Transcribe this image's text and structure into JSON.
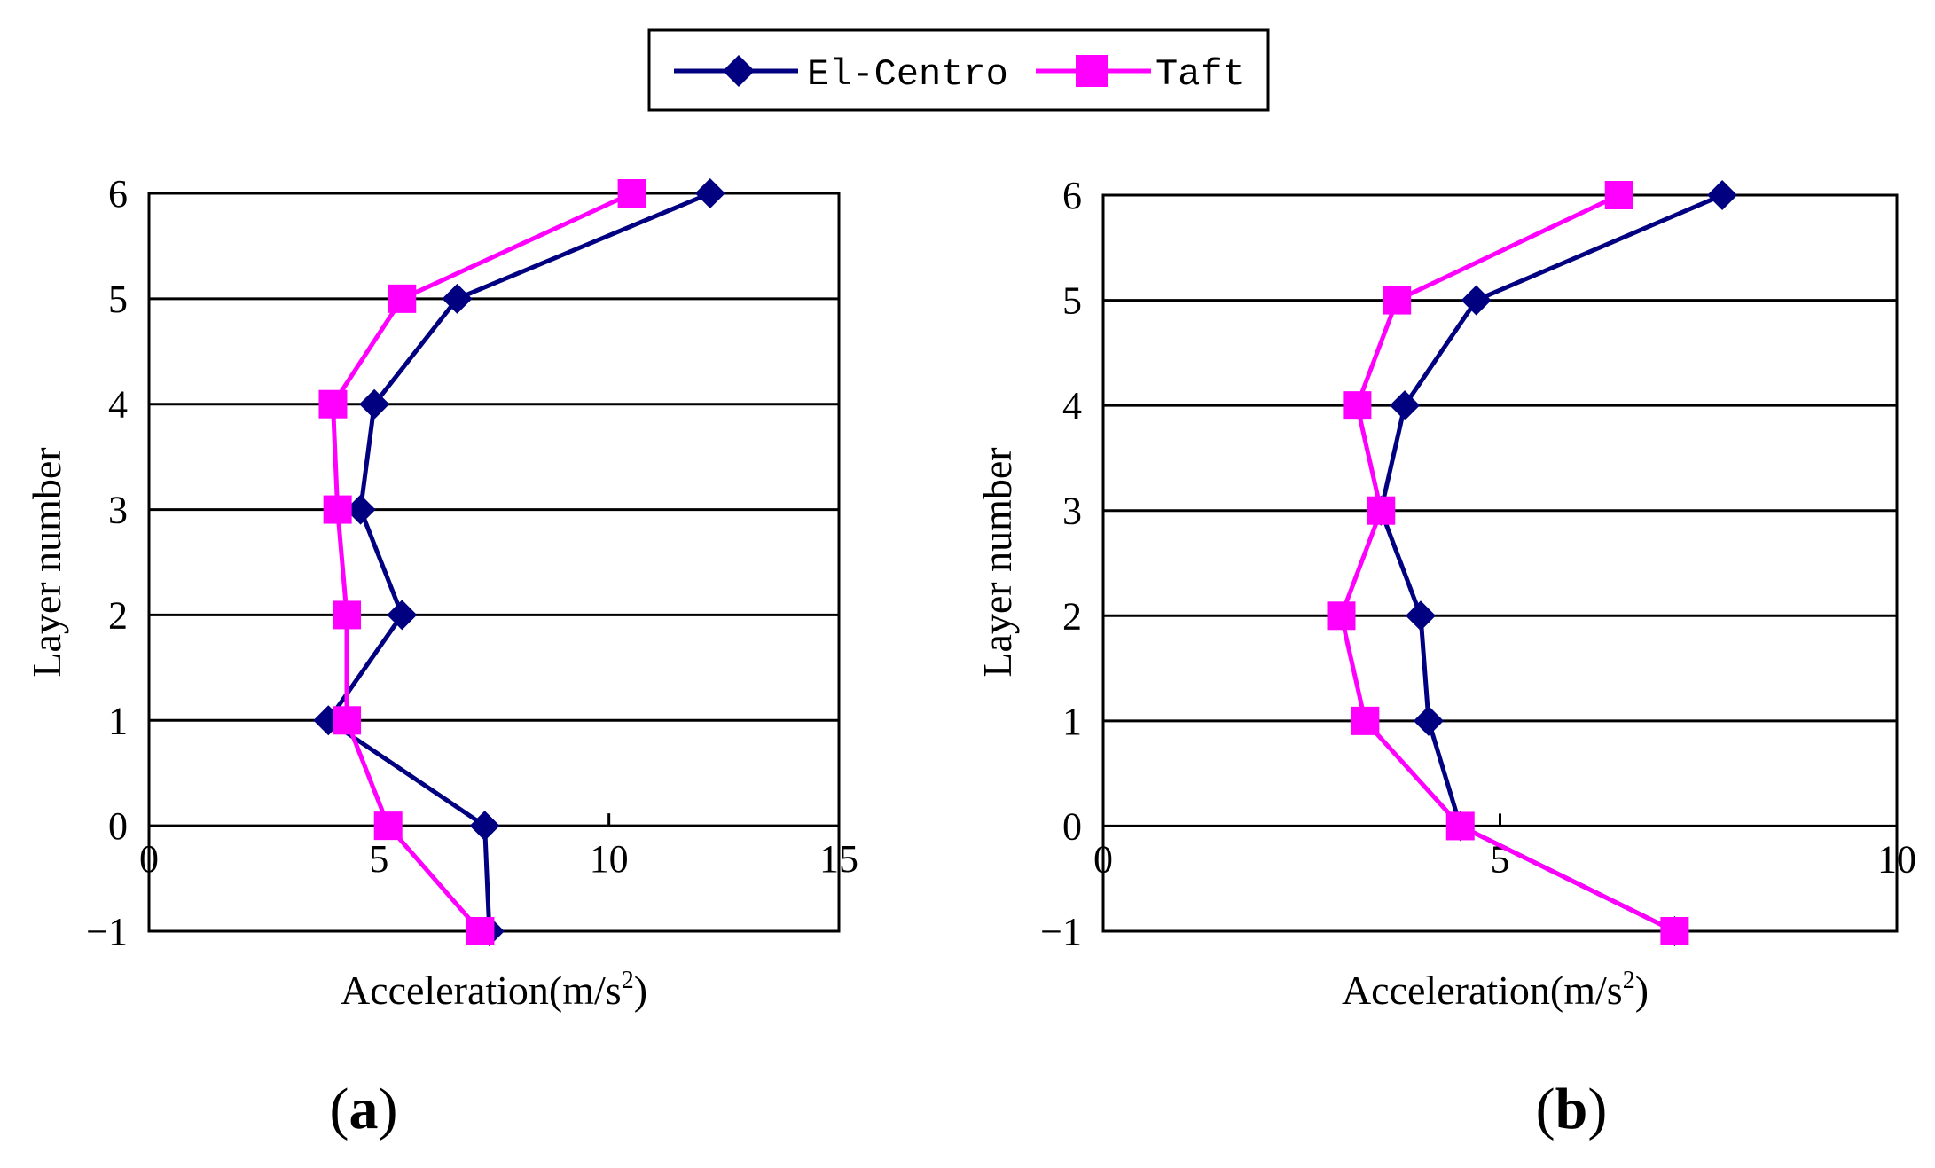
{
  "legend": {
    "items": [
      {
        "name": "El-Centro",
        "color": "#000080",
        "marker": "diamond"
      },
      {
        "name": "Taft",
        "color": "#FF00FF",
        "marker": "square"
      }
    ]
  },
  "chart_data": [
    {
      "type": "line",
      "panel_label_open": "(",
      "panel_label_letter": "a",
      "panel_label_close": ")",
      "xlabel": "Acceleration(m/s",
      "xlabel_sup": "2",
      "xlabel_close": ")",
      "ylabel": "Layer number",
      "xlim": [
        0,
        15
      ],
      "ylim": [
        -1,
        6
      ],
      "xticks": [
        "0",
        "5",
        "10",
        "15"
      ],
      "yticks": [
        "−1",
        "0",
        "1",
        "2",
        "3",
        "4",
        "5",
        "6"
      ],
      "grid": "horizontal",
      "series": [
        {
          "name": "El-Centro",
          "x": [
            7.4,
            7.3,
            3.9,
            5.5,
            4.6,
            4.9,
            6.7,
            12.2
          ],
          "y": [
            -1,
            0,
            1,
            2,
            3,
            4,
            5,
            6
          ]
        },
        {
          "name": "Taft",
          "x": [
            7.2,
            5.2,
            4.3,
            4.3,
            4.1,
            4.0,
            5.5,
            10.5
          ],
          "y": [
            -1,
            0,
            1,
            2,
            3,
            4,
            5,
            6
          ]
        }
      ]
    },
    {
      "type": "line",
      "panel_label_open": "(",
      "panel_label_letter": "b",
      "panel_label_close": ")",
      "xlabel": "Acceleration(m/s",
      "xlabel_sup": "2",
      "xlabel_close": ")",
      "ylabel": "Layer number",
      "xlim": [
        0,
        10
      ],
      "ylim": [
        -1,
        6
      ],
      "xticks": [
        "0",
        "5",
        "10"
      ],
      "yticks": [
        "−1",
        "0",
        "1",
        "2",
        "3",
        "4",
        "5",
        "6"
      ],
      "grid": "horizontal",
      "series": [
        {
          "name": "El-Centro",
          "x": [
            7.2,
            4.5,
            4.1,
            4.0,
            3.5,
            3.8,
            4.7,
            7.8
          ],
          "y": [
            -1,
            0,
            1,
            2,
            3,
            4,
            5,
            6
          ]
        },
        {
          "name": "Taft",
          "x": [
            7.2,
            4.5,
            3.3,
            3.0,
            3.5,
            3.2,
            3.7,
            6.5
          ],
          "y": [
            -1,
            0,
            1,
            2,
            3,
            4,
            5,
            6
          ]
        }
      ]
    }
  ]
}
